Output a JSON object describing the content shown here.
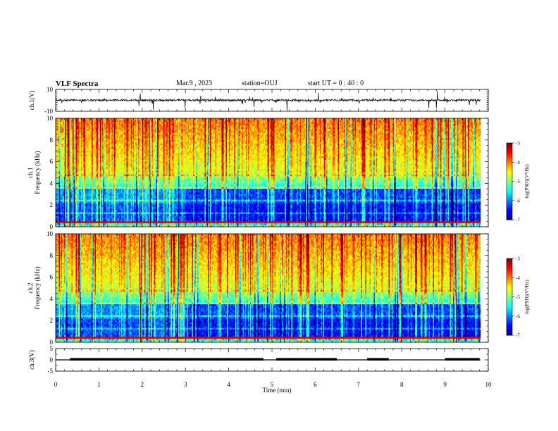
{
  "header": {
    "title": "VLF Spectra",
    "date": "Mar.9 , 2023",
    "station": "station=OUJ",
    "start": "start UT = 0 : 40 : 0"
  },
  "chart_data": [
    {
      "type": "line",
      "panel": "ch1-waveform",
      "ylabel": "ch.1(V)",
      "ylim": [
        -10,
        10
      ],
      "ytick_labels": [
        "10",
        "-10"
      ],
      "xlim": [
        0,
        10
      ]
    },
    {
      "type": "heatmap",
      "panel": "ch1-spectrogram",
      "ylabel_line1": "ch.1",
      "ylabel_line2": "Frequency (kHz)",
      "ylim": [
        0,
        10
      ],
      "ytick_labels": [
        "0",
        "2",
        "4",
        "6",
        "8",
        "10"
      ],
      "xlim": [
        0,
        10
      ],
      "colorbar": {
        "label": "log(PSD)(V²/Hz)",
        "range": [
          -7,
          -3
        ],
        "tick_labels": [
          "-3",
          "-4",
          "-5",
          "-6",
          "-7"
        ]
      }
    },
    {
      "type": "heatmap",
      "panel": "ch2-spectrogram",
      "ylabel_line1": "ch.2",
      "ylabel_line2": "Frequency (kHz)",
      "ylim": [
        0,
        10
      ],
      "ytick_labels": [
        "0",
        "2",
        "4",
        "6",
        "8",
        "10"
      ],
      "xlim": [
        0,
        10
      ],
      "colorbar": {
        "label": "log(PSD)(V²/Hz)",
        "range": [
          -7,
          -3
        ],
        "tick_labels": [
          "-3",
          "-4",
          "-5",
          "-6",
          "-7"
        ]
      }
    },
    {
      "type": "line",
      "panel": "ch3-signal",
      "ylabel": "ch.3(V)",
      "ylim": [
        -5,
        5
      ],
      "ytick_labels": [
        "5",
        "0",
        "-5"
      ],
      "xlim": [
        0,
        10
      ],
      "xlabel": "Time (min)",
      "xtick_labels": [
        "0",
        "1",
        "2",
        "3",
        "4",
        "5",
        "6",
        "7",
        "8",
        "9",
        "10"
      ],
      "high_segments_min": [
        [
          0.33,
          4.8
        ],
        [
          5.1,
          6.5
        ],
        [
          7.2,
          7.7
        ],
        [
          9.0,
          9.8
        ]
      ],
      "high_level": 0.5,
      "low_level": 0
    }
  ]
}
